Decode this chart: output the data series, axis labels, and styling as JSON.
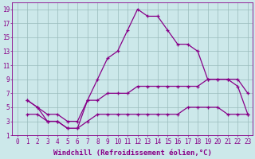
{
  "xlabel": "Windchill (Refroidissement éolien,°C)",
  "xlim": [
    -0.5,
    23.5
  ],
  "ylim": [
    1,
    20
  ],
  "xticks": [
    0,
    1,
    2,
    3,
    4,
    5,
    6,
    7,
    8,
    9,
    10,
    11,
    12,
    13,
    14,
    15,
    16,
    17,
    18,
    19,
    20,
    21,
    22,
    23
  ],
  "yticks": [
    1,
    3,
    5,
    7,
    9,
    11,
    13,
    15,
    17,
    19
  ],
  "background_color": "#cce8ea",
  "line_color": "#880088",
  "grid_color": "#99bbbb",
  "line1_x": [
    1,
    2,
    3,
    4,
    5,
    6,
    7,
    8,
    9,
    10,
    11,
    12,
    13,
    14,
    15,
    16,
    17,
    18,
    19,
    20,
    21,
    22,
    23
  ],
  "line1_y": [
    6,
    5,
    3,
    3,
    2,
    2,
    6,
    9,
    12,
    13,
    16,
    19,
    18,
    18,
    16,
    14,
    14,
    13,
    9,
    9,
    9,
    9,
    7
  ],
  "line2_x": [
    1,
    2,
    3,
    4,
    5,
    6,
    7,
    8,
    9,
    10,
    11,
    12,
    13,
    14,
    15,
    16,
    17,
    18,
    19,
    20,
    21,
    22,
    23
  ],
  "line2_y": [
    6,
    5,
    4,
    4,
    3,
    3,
    6,
    6,
    7,
    7,
    7,
    8,
    8,
    8,
    8,
    8,
    8,
    8,
    9,
    9,
    9,
    8,
    4
  ],
  "line3_x": [
    1,
    2,
    3,
    4,
    5,
    6,
    7,
    8,
    9,
    10,
    11,
    12,
    13,
    14,
    15,
    16,
    17,
    18,
    19,
    20,
    21,
    22,
    23
  ],
  "line3_y": [
    4,
    4,
    3,
    3,
    2,
    2,
    3,
    4,
    4,
    4,
    4,
    4,
    4,
    4,
    4,
    4,
    5,
    5,
    5,
    5,
    4,
    4,
    4
  ],
  "marker": "+",
  "markersize": 3.5,
  "linewidth": 0.9,
  "tick_fontsize": 5.5,
  "xlabel_fontsize": 6.5,
  "text_color": "#880088"
}
